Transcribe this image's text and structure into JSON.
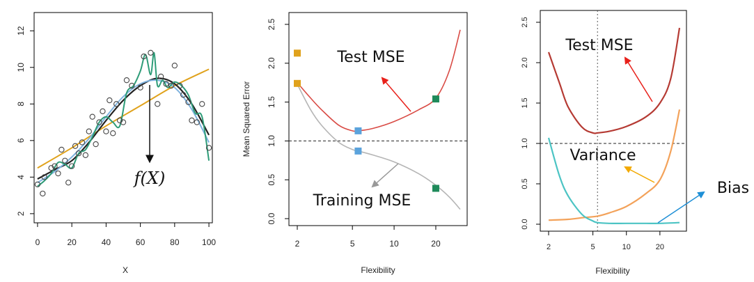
{
  "chart_data": [
    {
      "type": "scatter",
      "title": "",
      "xlabel": "X",
      "ylabel": "",
      "xlim": [
        -2,
        102
      ],
      "ylim": [
        1.5,
        13
      ],
      "x_ticks": [
        "0",
        "20",
        "40",
        "60",
        "80",
        "100"
      ],
      "y_ticks": [
        "2",
        "4",
        "6",
        "8",
        "10",
        "12"
      ],
      "annotation": "f(X)",
      "points": {
        "x": [
          0,
          3,
          4,
          8,
          10,
          12,
          14,
          16,
          18,
          20,
          22,
          24,
          26,
          28,
          30,
          32,
          34,
          36,
          38,
          40,
          42,
          44,
          46,
          48,
          50,
          52,
          55,
          60,
          62,
          66,
          70,
          72,
          75,
          78,
          80,
          83,
          85,
          88,
          90,
          93,
          96,
          100
        ],
        "y": [
          3.6,
          3.1,
          4.0,
          4.5,
          4.6,
          4.2,
          5.5,
          4.9,
          3.7,
          4.6,
          5.7,
          5.3,
          5.9,
          5.2,
          6.5,
          7.3,
          5.8,
          7.0,
          7.6,
          6.5,
          8.2,
          6.4,
          8.0,
          7.1,
          7.0,
          9.3,
          9.0,
          8.9,
          10.6,
          10.8,
          8.0,
          9.5,
          9.1,
          9.0,
          10.1,
          9.0,
          8.5,
          8.1,
          7.1,
          7.0,
          8.0,
          5.6
        ]
      },
      "series": [
        {
          "name": "",
          "color": "#e0a21c",
          "x": [
            0,
            20,
            40,
            60,
            80,
            100
          ],
          "y": [
            4.5,
            5.6,
            6.8,
            7.9,
            9.0,
            9.9
          ]
        },
        {
          "name": "",
          "color": "#222222",
          "x": [
            0,
            10,
            20,
            30,
            40,
            50,
            60,
            70,
            80,
            90,
            100
          ],
          "y": [
            3.9,
            4.4,
            4.9,
            5.9,
            7.1,
            8.2,
            9.0,
            9.4,
            9.1,
            8.0,
            6.3
          ]
        },
        {
          "name": "",
          "color": "#7fb3df",
          "x": [
            0,
            10,
            20,
            30,
            40,
            50,
            60,
            70,
            80,
            90,
            100
          ],
          "y": [
            3.7,
            4.3,
            5.1,
            6.1,
            7.3,
            8.4,
            9.1,
            9.3,
            8.9,
            7.7,
            5.9
          ]
        },
        {
          "name": "",
          "color": "#2e9c78",
          "x": [
            0,
            4,
            8,
            12,
            16,
            20,
            24,
            28,
            32,
            36,
            40,
            44,
            48,
            52,
            56,
            60,
            63,
            66,
            68,
            70,
            73,
            76,
            80,
            84,
            88,
            92,
            96,
            100
          ],
          "y": [
            3.5,
            3.8,
            4.2,
            4.8,
            4.7,
            4.5,
            5.3,
            5.5,
            6.2,
            7.0,
            7.3,
            7.0,
            6.8,
            8.6,
            9.0,
            9.8,
            10.7,
            9.6,
            10.8,
            9.0,
            9.3,
            8.9,
            9.2,
            9.0,
            8.5,
            7.5,
            7.3,
            4.9
          ]
        }
      ]
    },
    {
      "type": "line",
      "title": "",
      "xlabel": "Flexibility",
      "ylabel": "Mean Squared Error",
      "x_scale": "log",
      "xlim": [
        2,
        30
      ],
      "ylim": [
        0,
        2.5
      ],
      "x_ticks": [
        "2",
        "5",
        "10",
        "20"
      ],
      "y_ticks": [
        "0.0",
        "0.5",
        "1.0",
        "1.5",
        "2.0",
        "2.5"
      ],
      "reference_line": 1.0,
      "series": [
        {
          "name": "Test MSE",
          "color": "#d94b45",
          "x": [
            2,
            2.5,
            3,
            4,
            5,
            5.5,
            7,
            10,
            15,
            20,
            25,
            30
          ],
          "y": [
            1.75,
            1.55,
            1.4,
            1.2,
            1.13,
            1.13,
            1.16,
            1.25,
            1.4,
            1.55,
            1.9,
            2.43
          ]
        },
        {
          "name": "Training MSE",
          "color": "#b5b5b5",
          "x": [
            2,
            2.5,
            3,
            4,
            5,
            5.5,
            7,
            10,
            15,
            20,
            25,
            30
          ],
          "y": [
            1.73,
            1.4,
            1.2,
            0.98,
            0.89,
            0.87,
            0.82,
            0.73,
            0.58,
            0.43,
            0.28,
            0.12
          ]
        }
      ],
      "markers": [
        {
          "x": 2,
          "y": 2.13,
          "color": "#e0a21c"
        },
        {
          "x": 2,
          "y": 1.74,
          "color": "#e0a21c"
        },
        {
          "x": 5.5,
          "y": 1.13,
          "color": "#5ba3dc"
        },
        {
          "x": 5.5,
          "y": 0.87,
          "color": "#5ba3dc"
        },
        {
          "x": 20,
          "y": 1.54,
          "color": "#1e8a5a"
        },
        {
          "x": 20,
          "y": 0.39,
          "color": "#1e8a5a"
        }
      ],
      "annotations": [
        "Test MSE",
        "Training MSE"
      ]
    },
    {
      "type": "line",
      "title": "",
      "xlabel": "Flexibility",
      "ylabel": "",
      "x_scale": "log",
      "xlim": [
        2,
        30
      ],
      "ylim": [
        0,
        2.5
      ],
      "x_ticks": [
        "2",
        "5",
        "10",
        "20"
      ],
      "y_ticks": [
        "0.0",
        "0.5",
        "1.0",
        "1.5",
        "2.0",
        "2.5"
      ],
      "reference_line": 1.0,
      "vertical_line": 5.5,
      "series": [
        {
          "name": "Test MSE",
          "color": "#b53a33",
          "x": [
            2,
            2.5,
            3,
            4,
            5,
            5.5,
            7,
            10,
            15,
            20,
            25,
            30
          ],
          "y": [
            2.13,
            1.75,
            1.45,
            1.2,
            1.13,
            1.13,
            1.15,
            1.21,
            1.33,
            1.5,
            1.8,
            2.43
          ]
        },
        {
          "name": "Variance",
          "color": "#f3a25a",
          "x": [
            2,
            3,
            4,
            5.5,
            7,
            10,
            15,
            20,
            25,
            30
          ],
          "y": [
            0.05,
            0.06,
            0.08,
            0.1,
            0.14,
            0.22,
            0.38,
            0.55,
            0.9,
            1.42
          ]
        },
        {
          "name": "Bias",
          "color": "#4cc4c4",
          "x": [
            2,
            2.5,
            3,
            4,
            5,
            5.5,
            7,
            10,
            15,
            20,
            30
          ],
          "y": [
            1.07,
            0.6,
            0.35,
            0.12,
            0.04,
            0.02,
            0.01,
            0.01,
            0.01,
            0.01,
            0.02
          ]
        }
      ],
      "annotations": [
        "Test MSE",
        "Variance",
        "Bias"
      ]
    }
  ]
}
